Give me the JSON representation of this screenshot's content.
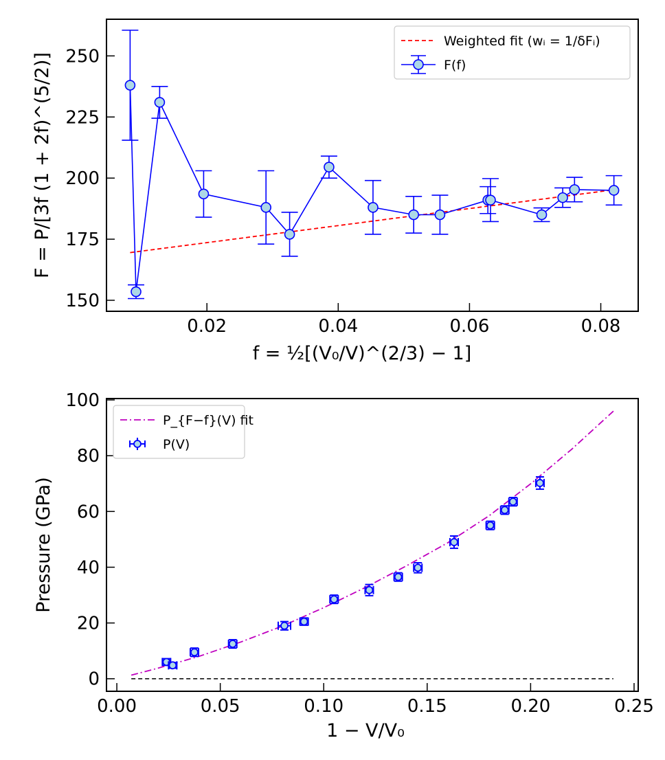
{
  "chart_data": [
    {
      "type": "line",
      "xlabel": "f = ½[(V₀/V)^(2/3) − 1]",
      "ylabel": "F = P/[3f (1 + 2f)^(5/2)]",
      "xlim": [
        0.0047,
        0.0857
      ],
      "ylim": [
        145.5,
        265
      ],
      "xticks": [
        "0.02",
        "0.04",
        "0.06",
        "0.08"
      ],
      "yticks": [
        "150",
        "175",
        "200",
        "225",
        "250"
      ],
      "legend_position": "top-right",
      "legend": [
        "Weighted fit (wᵢ = 1/δFᵢ)",
        "F(f)"
      ],
      "series": [
        {
          "name": "F(f)",
          "style": "markers-lines-errorbars",
          "color": "#0000ff",
          "marker_fill": "#add8e6",
          "points": [
            {
              "x": 0.0083,
              "y": 238.0,
              "err": 22.5
            },
            {
              "x": 0.0092,
              "y": 153.5,
              "err": 2.8
            },
            {
              "x": 0.0128,
              "y": 231.0,
              "err": 6.5
            },
            {
              "x": 0.0195,
              "y": 193.5,
              "err": 9.5
            },
            {
              "x": 0.029,
              "y": 188.0,
              "err": 15.0
            },
            {
              "x": 0.0326,
              "y": 177.0,
              "err": 9.0
            },
            {
              "x": 0.0386,
              "y": 204.5,
              "err": 4.5
            },
            {
              "x": 0.0453,
              "y": 188.0,
              "err": 11.0
            },
            {
              "x": 0.0515,
              "y": 185.0,
              "err": 7.5
            },
            {
              "x": 0.0555,
              "y": 185.0,
              "err": 8.0
            },
            {
              "x": 0.0628,
              "y": 191.0,
              "err": 5.5
            },
            {
              "x": 0.0632,
              "y": 191.0,
              "err": 8.8
            },
            {
              "x": 0.071,
              "y": 185.0,
              "err": 2.8
            },
            {
              "x": 0.0742,
              "y": 192.0,
              "err": 4.0
            },
            {
              "x": 0.076,
              "y": 195.3,
              "err": 5.0
            },
            {
              "x": 0.082,
              "y": 195.0,
              "err": 6.0
            }
          ]
        },
        {
          "name": "Weighted fit (wᵢ = 1/δFᵢ)",
          "style": "dashed-line",
          "color": "#ff0000",
          "x": [
            0.0083,
            0.082
          ],
          "y": [
            169.5,
            195.2
          ]
        }
      ]
    },
    {
      "type": "scatter",
      "xlabel": "1 − V/V₀",
      "ylabel": "Pressure (GPa)",
      "xlim": [
        -0.005,
        0.252
      ],
      "ylim": [
        -4.5,
        100.5
      ],
      "xticks": [
        "0.00",
        "0.05",
        "0.10",
        "0.15",
        "0.20",
        "0.25"
      ],
      "yticks": [
        "0",
        "20",
        "40",
        "60",
        "80",
        "100"
      ],
      "legend_position": "top-left",
      "legend": [
        "P_{F−f}(V) fit",
        "P(V)"
      ],
      "zero_line": true,
      "series": [
        {
          "name": "P(V)",
          "style": "markers-errorbars",
          "color": "#0000ff",
          "marker_fill": "#add8e6",
          "points": [
            {
              "x": 0.024,
              "y": 6.0,
              "xerr": 0.002,
              "yerr": 1.2
            },
            {
              "x": 0.027,
              "y": 4.8,
              "xerr": 0.002,
              "yerr": 1.0
            },
            {
              "x": 0.0375,
              "y": 9.5,
              "xerr": 0.002,
              "yerr": 1.5
            },
            {
              "x": 0.056,
              "y": 12.5,
              "xerr": 0.002,
              "yerr": 1.5
            },
            {
              "x": 0.081,
              "y": 19.0,
              "xerr": 0.003,
              "yerr": 1.5
            },
            {
              "x": 0.0905,
              "y": 20.5,
              "xerr": 0.002,
              "yerr": 1.3
            },
            {
              "x": 0.105,
              "y": 28.5,
              "xerr": 0.002,
              "yerr": 1.5
            },
            {
              "x": 0.122,
              "y": 31.8,
              "xerr": 0.002,
              "yerr": 2.0
            },
            {
              "x": 0.136,
              "y": 36.5,
              "xerr": 0.002,
              "yerr": 1.5
            },
            {
              "x": 0.1455,
              "y": 39.8,
              "xerr": 0.002,
              "yerr": 1.8
            },
            {
              "x": 0.163,
              "y": 49.0,
              "xerr": 0.002,
              "yerr": 2.2
            },
            {
              "x": 0.1805,
              "y": 55.0,
              "xerr": 0.002,
              "yerr": 1.5
            },
            {
              "x": 0.1875,
              "y": 60.5,
              "xerr": 0.002,
              "yerr": 1.5
            },
            {
              "x": 0.1915,
              "y": 63.5,
              "xerr": 0.002,
              "yerr": 1.5
            },
            {
              "x": 0.2045,
              "y": 70.2,
              "xerr": 0.002,
              "yerr": 2.2
            }
          ]
        },
        {
          "name": "P_{F−f}(V) fit",
          "style": "dashdot-line",
          "color": "#bf00bf",
          "x": [
            0.007,
            0.02,
            0.04,
            0.06,
            0.08,
            0.1,
            0.12,
            0.14,
            0.16,
            0.18,
            0.2,
            0.22,
            0.24
          ],
          "y": [
            1.3,
            3.8,
            8.1,
            13.2,
            18.9,
            25.5,
            32.7,
            40.5,
            48.8,
            58.5,
            69.9,
            82.4,
            96.0
          ]
        }
      ]
    }
  ]
}
